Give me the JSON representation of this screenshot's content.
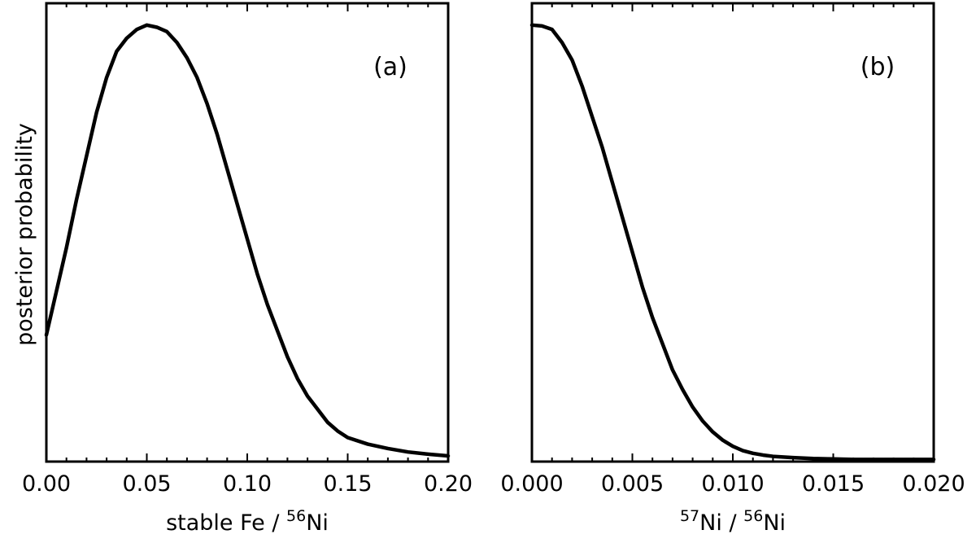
{
  "chart_data": [
    {
      "type": "line",
      "panel_label": "(a)",
      "xlabel_main": "stable Fe / ",
      "xlabel_sup": "56",
      "xlabel_tail": "Ni",
      "ylabel": "posterior probability",
      "xlim": [
        0,
        0.2
      ],
      "ylim": [
        0,
        1.05
      ],
      "xticks": [
        0.0,
        0.05,
        0.1,
        0.15,
        0.2
      ],
      "xtick_labels": [
        "0.00",
        "0.05",
        "0.10",
        "0.15",
        "0.20"
      ],
      "series": [
        {
          "x": [
            0.0,
            0.005,
            0.01,
            0.015,
            0.02,
            0.025,
            0.03,
            0.035,
            0.04,
            0.045,
            0.05,
            0.055,
            0.06,
            0.065,
            0.07,
            0.075,
            0.08,
            0.085,
            0.09,
            0.095,
            0.1,
            0.105,
            0.11,
            0.115,
            0.12,
            0.125,
            0.13,
            0.135,
            0.14,
            0.145,
            0.15,
            0.16,
            0.17,
            0.18,
            0.19,
            0.2
          ],
          "y": [
            0.29,
            0.39,
            0.49,
            0.6,
            0.7,
            0.8,
            0.88,
            0.94,
            0.97,
            0.99,
            1.0,
            0.995,
            0.985,
            0.96,
            0.925,
            0.88,
            0.82,
            0.75,
            0.67,
            0.59,
            0.51,
            0.43,
            0.36,
            0.3,
            0.24,
            0.19,
            0.15,
            0.12,
            0.09,
            0.07,
            0.055,
            0.04,
            0.03,
            0.022,
            0.017,
            0.013
          ]
        }
      ]
    },
    {
      "type": "line",
      "panel_label": "(b)",
      "xlabel_sup1": "57",
      "xlabel_mid": "Ni / ",
      "xlabel_sup2": "56",
      "xlabel_tail": "Ni",
      "xlim": [
        0,
        0.02
      ],
      "ylim": [
        0,
        1.05
      ],
      "xticks": [
        0.0,
        0.005,
        0.01,
        0.015,
        0.02
      ],
      "xtick_labels": [
        "0.000",
        "0.005",
        "0.010",
        "0.015",
        "0.020"
      ],
      "series": [
        {
          "x": [
            0.0,
            0.0005,
            0.001,
            0.0015,
            0.002,
            0.0025,
            0.003,
            0.0035,
            0.004,
            0.0045,
            0.005,
            0.0055,
            0.006,
            0.0065,
            0.007,
            0.0075,
            0.008,
            0.0085,
            0.009,
            0.0095,
            0.01,
            0.0105,
            0.011,
            0.0115,
            0.012,
            0.013,
            0.014,
            0.015,
            0.016,
            0.017,
            0.018,
            0.019,
            0.02
          ],
          "y": [
            1.0,
            0.998,
            0.99,
            0.96,
            0.92,
            0.86,
            0.79,
            0.72,
            0.64,
            0.56,
            0.48,
            0.4,
            0.33,
            0.27,
            0.21,
            0.165,
            0.125,
            0.093,
            0.068,
            0.049,
            0.035,
            0.025,
            0.019,
            0.015,
            0.012,
            0.009,
            0.007,
            0.006,
            0.005,
            0.005,
            0.005,
            0.005,
            0.005
          ]
        }
      ]
    }
  ]
}
